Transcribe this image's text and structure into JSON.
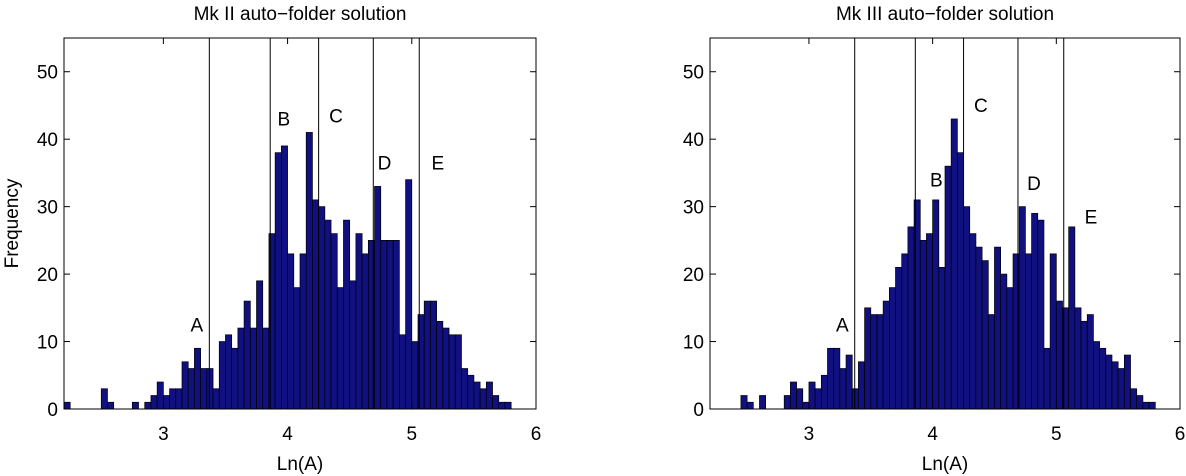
{
  "chart_data": [
    {
      "type": "bar",
      "title": "Mk II auto−folder solution",
      "xlabel": "Ln(A)",
      "ylabel": "Frequency",
      "xlim": [
        2.2,
        6
      ],
      "ylim": [
        0,
        55
      ],
      "xticks": [
        "3",
        "4",
        "5",
        "6"
      ],
      "yticks": [
        "0",
        "10",
        "20",
        "30",
        "40",
        "50"
      ],
      "bin_width": 0.05,
      "bins": [
        [
          2.2,
          1
        ],
        [
          2.5,
          3
        ],
        [
          2.55,
          1
        ],
        [
          2.75,
          1
        ],
        [
          2.85,
          1
        ],
        [
          2.9,
          2
        ],
        [
          2.95,
          4
        ],
        [
          3.0,
          2
        ],
        [
          3.05,
          3
        ],
        [
          3.1,
          3
        ],
        [
          3.15,
          7
        ],
        [
          3.2,
          6
        ],
        [
          3.25,
          9
        ],
        [
          3.3,
          6
        ],
        [
          3.35,
          6
        ],
        [
          3.4,
          3
        ],
        [
          3.45,
          10
        ],
        [
          3.5,
          11
        ],
        [
          3.55,
          9
        ],
        [
          3.6,
          12
        ],
        [
          3.65,
          16
        ],
        [
          3.7,
          12
        ],
        [
          3.75,
          19
        ],
        [
          3.8,
          12
        ],
        [
          3.85,
          26
        ],
        [
          3.9,
          38
        ],
        [
          3.95,
          39
        ],
        [
          4.0,
          23
        ],
        [
          4.05,
          18
        ],
        [
          4.1,
          23
        ],
        [
          4.15,
          41
        ],
        [
          4.2,
          31
        ],
        [
          4.25,
          30
        ],
        [
          4.3,
          28
        ],
        [
          4.35,
          26
        ],
        [
          4.4,
          18
        ],
        [
          4.45,
          28
        ],
        [
          4.5,
          19
        ],
        [
          4.55,
          26
        ],
        [
          4.6,
          23
        ],
        [
          4.65,
          25
        ],
        [
          4.7,
          33
        ],
        [
          4.75,
          25
        ],
        [
          4.8,
          25
        ],
        [
          4.85,
          25
        ],
        [
          4.9,
          11
        ],
        [
          4.95,
          34
        ],
        [
          5.0,
          10
        ],
        [
          5.05,
          14
        ],
        [
          5.1,
          16
        ],
        [
          5.15,
          16
        ],
        [
          5.2,
          13
        ],
        [
          5.25,
          12
        ],
        [
          5.3,
          11
        ],
        [
          5.35,
          11
        ],
        [
          5.4,
          6
        ],
        [
          5.45,
          5
        ],
        [
          5.5,
          4
        ],
        [
          5.55,
          3
        ],
        [
          5.6,
          4
        ],
        [
          5.65,
          2
        ],
        [
          5.7,
          1
        ],
        [
          5.75,
          1
        ]
      ],
      "boundaries": [
        3.37,
        3.86,
        4.25,
        4.69,
        5.06
      ],
      "regions": [
        {
          "label": "A",
          "x": 3.27,
          "y": 11.5
        },
        {
          "label": "B",
          "x": 3.97,
          "y": 42
        },
        {
          "label": "C",
          "x": 4.39,
          "y": 42.5
        },
        {
          "label": "D",
          "x": 4.78,
          "y": 35.5
        },
        {
          "label": "E",
          "x": 5.21,
          "y": 35.5
        }
      ]
    },
    {
      "type": "bar",
      "title": "Mk III auto−folder solution",
      "xlabel": "Ln(A)",
      "ylabel": "",
      "xlim": [
        2.2,
        6
      ],
      "ylim": [
        0,
        55
      ],
      "xticks": [
        "3",
        "4",
        "5",
        "6"
      ],
      "yticks": [
        "0",
        "10",
        "20",
        "30",
        "40",
        "50"
      ],
      "bin_width": 0.05,
      "bins": [
        [
          2.45,
          2
        ],
        [
          2.5,
          1
        ],
        [
          2.6,
          2
        ],
        [
          2.8,
          2
        ],
        [
          2.85,
          4
        ],
        [
          2.9,
          3
        ],
        [
          2.95,
          1
        ],
        [
          3.0,
          4
        ],
        [
          3.05,
          3
        ],
        [
          3.1,
          5
        ],
        [
          3.15,
          9
        ],
        [
          3.2,
          9
        ],
        [
          3.25,
          6
        ],
        [
          3.3,
          8
        ],
        [
          3.35,
          3
        ],
        [
          3.4,
          7
        ],
        [
          3.45,
          15
        ],
        [
          3.5,
          14
        ],
        [
          3.55,
          14
        ],
        [
          3.6,
          16
        ],
        [
          3.65,
          18
        ],
        [
          3.7,
          21
        ],
        [
          3.75,
          23
        ],
        [
          3.8,
          27
        ],
        [
          3.85,
          31
        ],
        [
          3.9,
          25
        ],
        [
          3.95,
          26
        ],
        [
          4.0,
          31
        ],
        [
          4.05,
          21
        ],
        [
          4.1,
          36
        ],
        [
          4.15,
          43
        ],
        [
          4.2,
          38
        ],
        [
          4.25,
          30
        ],
        [
          4.3,
          26
        ],
        [
          4.35,
          24
        ],
        [
          4.4,
          22
        ],
        [
          4.45,
          14
        ],
        [
          4.5,
          24
        ],
        [
          4.55,
          20
        ],
        [
          4.6,
          18
        ],
        [
          4.65,
          23
        ],
        [
          4.7,
          30
        ],
        [
          4.75,
          23
        ],
        [
          4.8,
          29
        ],
        [
          4.85,
          28
        ],
        [
          4.9,
          9
        ],
        [
          4.95,
          23
        ],
        [
          5.0,
          16
        ],
        [
          5.05,
          15
        ],
        [
          5.1,
          27
        ],
        [
          5.15,
          15
        ],
        [
          5.2,
          13
        ],
        [
          5.25,
          14
        ],
        [
          5.3,
          10
        ],
        [
          5.35,
          9
        ],
        [
          5.4,
          8
        ],
        [
          5.45,
          7
        ],
        [
          5.5,
          6
        ],
        [
          5.55,
          8
        ],
        [
          5.6,
          3
        ],
        [
          5.65,
          2
        ],
        [
          5.7,
          1
        ],
        [
          5.75,
          1
        ]
      ],
      "boundaries": [
        3.37,
        3.86,
        4.25,
        4.69,
        5.06
      ],
      "regions": [
        {
          "label": "A",
          "x": 3.27,
          "y": 11.5
        },
        {
          "label": "B",
          "x": 4.03,
          "y": 33
        },
        {
          "label": "C",
          "x": 4.39,
          "y": 44
        },
        {
          "label": "D",
          "x": 4.82,
          "y": 32.5
        },
        {
          "label": "E",
          "x": 5.28,
          "y": 27.5
        }
      ]
    }
  ]
}
